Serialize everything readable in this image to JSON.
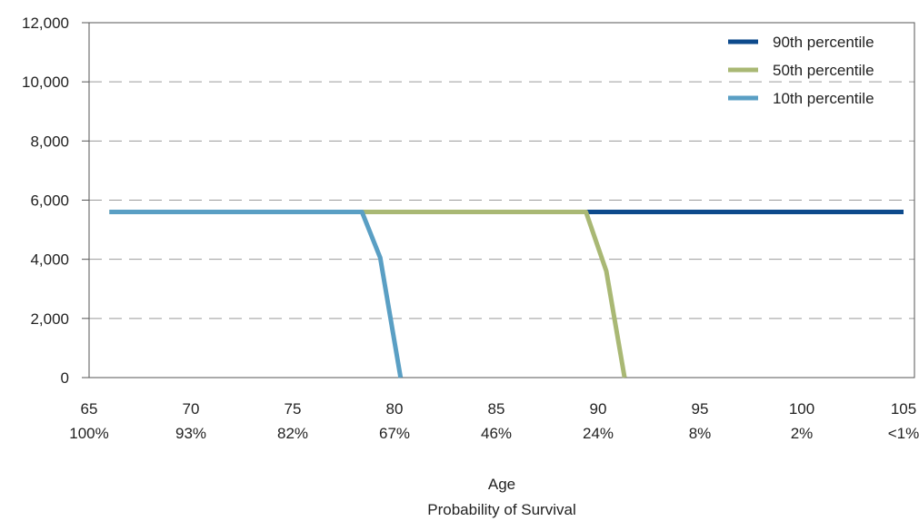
{
  "chart_data": {
    "type": "line",
    "xlabel": "Age",
    "xlabel2": "Probability of Survival",
    "xlim": [
      65,
      105
    ],
    "ylim": [
      0,
      12000
    ],
    "y_ticks": [
      "0",
      "2,000",
      "4,000",
      "6,000",
      "8,000",
      "10,000",
      "12,000"
    ],
    "x_ticks": [
      {
        "age": "65",
        "prob": "100%"
      },
      {
        "age": "70",
        "prob": "93%"
      },
      {
        "age": "75",
        "prob": "82%"
      },
      {
        "age": "80",
        "prob": "67%"
      },
      {
        "age": "85",
        "prob": "46%"
      },
      {
        "age": "90",
        "prob": "24%"
      },
      {
        "age": "95",
        "prob": "8%"
      },
      {
        "age": "100",
        "prob": "2%"
      },
      {
        "age": "105",
        "prob": "<1%"
      }
    ],
    "grid": "horizontal dashed",
    "legend_position": "top-right",
    "series": [
      {
        "name": "90th percentile",
        "color": "#0d4a8c",
        "points": [
          [
            66,
            5600
          ],
          [
            105,
            5600
          ]
        ]
      },
      {
        "name": "50th percentile",
        "color": "#a9b874",
        "points": [
          [
            66,
            5600
          ],
          [
            89.4,
            5600
          ],
          [
            90.4,
            3600
          ],
          [
            91.3,
            0
          ]
        ]
      },
      {
        "name": "10th percentile",
        "color": "#5a9fc4",
        "points": [
          [
            66,
            5600
          ],
          [
            78.4,
            5600
          ],
          [
            79.3,
            4050
          ],
          [
            80.3,
            0
          ]
        ]
      }
    ]
  }
}
